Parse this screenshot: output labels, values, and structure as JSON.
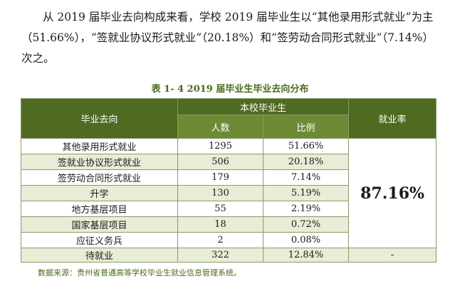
{
  "paragraph": {
    "line1": "从 2019 届毕业去向构成来看，学校 2019 届毕业生以“其他录用形式就业”为主",
    "line2": "（51.66%），“签就业协议形式就业”（20.18%）和“签劳动合同形式就业”（7.14%）",
    "line3": "次之。"
  },
  "table_caption": "表 1- 4    2019 届毕业生毕业去向分布",
  "table": {
    "col_destination": "毕业去向",
    "group_header": "本校毕业生",
    "col_count": "人数",
    "col_ratio": "比例",
    "col_rate": "就业率",
    "employment_rate": "87.16%",
    "rows": [
      {
        "name": "其他录用形式就业",
        "count": "1295",
        "ratio": "51.66%"
      },
      {
        "name": "签就业协议形式就业",
        "count": "506",
        "ratio": "20.18%"
      },
      {
        "name": "签劳动合同形式就业",
        "count": "179",
        "ratio": "7.14%"
      },
      {
        "name": "升学",
        "count": "130",
        "ratio": "5.19%"
      },
      {
        "name": "地方基层项目",
        "count": "55",
        "ratio": "2.19%"
      },
      {
        "name": "国家基层项目",
        "count": "18",
        "ratio": "0.72%"
      },
      {
        "name": "应征义务兵",
        "count": "2",
        "ratio": "0.08%"
      }
    ],
    "footer": {
      "name": "待就业",
      "count": "322",
      "ratio": "12.84%",
      "rate": "-"
    }
  },
  "source_note": "数据来源：贵州省普通高等学校毕业生就业信息管理系统。",
  "colors": {
    "header": "#4f6a21",
    "subheader": "#6d8a34",
    "alt_row": "#e7edd6"
  }
}
